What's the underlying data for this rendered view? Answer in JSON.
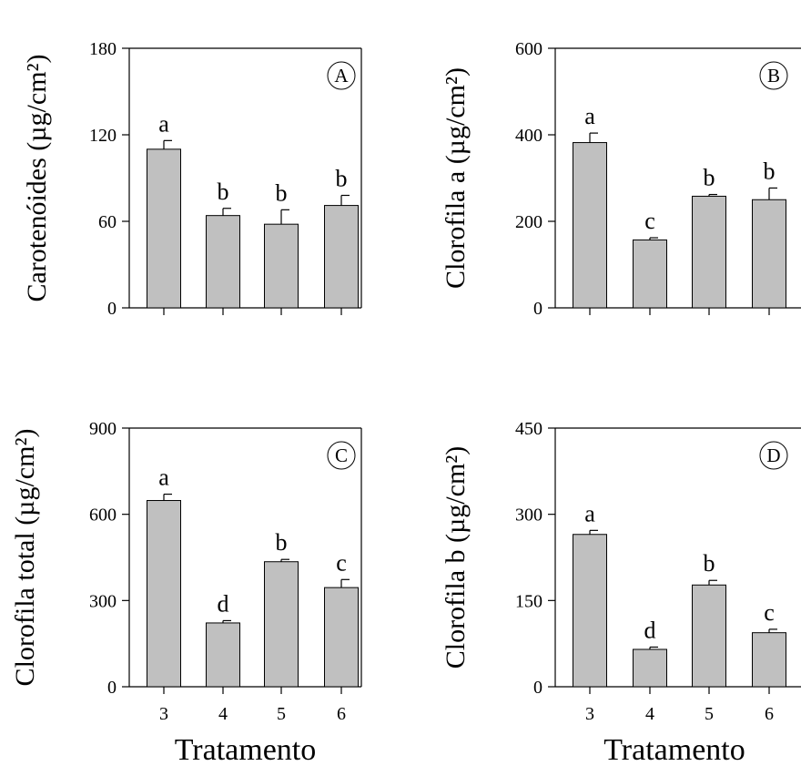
{
  "chart_data": [
    {
      "type": "bar",
      "panel_label": "A",
      "ylabel": "Carotenóides (µg/cm²)",
      "xlabel": "",
      "categories": [
        "3",
        "4",
        "5",
        "6"
      ],
      "show_x_ticklabels": false,
      "yticks": [
        "0",
        "60",
        "120",
        "180"
      ],
      "ylim": [
        0,
        180
      ],
      "values": [
        110,
        64,
        58,
        71
      ],
      "errors": [
        6,
        5,
        10,
        7
      ],
      "significance": [
        "a",
        "b",
        "b",
        "b"
      ],
      "bar_color": "#c0c0c0"
    },
    {
      "type": "bar",
      "panel_label": "B",
      "ylabel": "Clorofila a (µg/cm²)",
      "xlabel": "",
      "categories": [
        "3",
        "4",
        "5",
        "6"
      ],
      "show_x_ticklabels": false,
      "yticks": [
        "0",
        "200",
        "400",
        "600"
      ],
      "ylim": [
        0,
        600
      ],
      "values": [
        382,
        157,
        258,
        250
      ],
      "errors": [
        22,
        5,
        4,
        27
      ],
      "significance": [
        "a",
        "c",
        "b",
        "b"
      ],
      "bar_color": "#c0c0c0"
    },
    {
      "type": "bar",
      "panel_label": "C",
      "ylabel": "Clorofila total (µg/cm²)",
      "xlabel": "Tratamento",
      "categories": [
        "3",
        "4",
        "5",
        "6"
      ],
      "show_x_ticklabels": true,
      "yticks": [
        "0",
        "300",
        "600",
        "900"
      ],
      "ylim": [
        0,
        900
      ],
      "values": [
        648,
        222,
        435,
        345
      ],
      "errors": [
        22,
        8,
        8,
        28
      ],
      "significance": [
        "a",
        "d",
        "b",
        "c"
      ],
      "bar_color": "#c0c0c0"
    },
    {
      "type": "bar",
      "panel_label": "D",
      "ylabel": "Clorofila b (µg/cm²)",
      "xlabel": "Tratamento",
      "categories": [
        "3",
        "4",
        "5",
        "6"
      ],
      "show_x_ticklabels": true,
      "yticks": [
        "0",
        "150",
        "300",
        "450"
      ],
      "ylim": [
        0,
        450
      ],
      "values": [
        265,
        65,
        177,
        94
      ],
      "errors": [
        7,
        4,
        8,
        6
      ],
      "significance": [
        "a",
        "d",
        "b",
        "c"
      ],
      "bar_color": "#c0c0c0"
    }
  ]
}
